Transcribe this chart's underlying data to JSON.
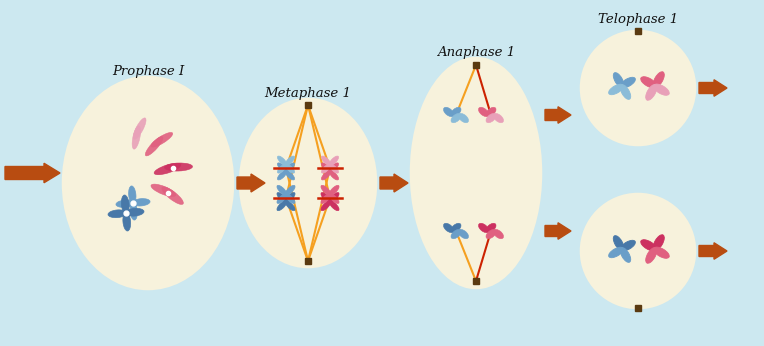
{
  "background_color": "#cce8f0",
  "cell_fill": "#f7f2dc",
  "cell_edge": "#7a6840",
  "labels": [
    "Prophase I",
    "Metaphase 1",
    "Anaphase 1",
    "Telophase 1"
  ],
  "arrow_color": "#b84c11",
  "blue_dark": "#4878a8",
  "blue_mid": "#6a9ec8",
  "blue_light": "#8bbcd8",
  "pink_dark": "#cc3060",
  "pink_mid": "#e06080",
  "pink_light": "#e8a0b8",
  "mauve": "#a08098",
  "spindle_orange": "#f5a020",
  "spindle_red": "#cc2200",
  "white": "#ffffff",
  "black": "#222222"
}
